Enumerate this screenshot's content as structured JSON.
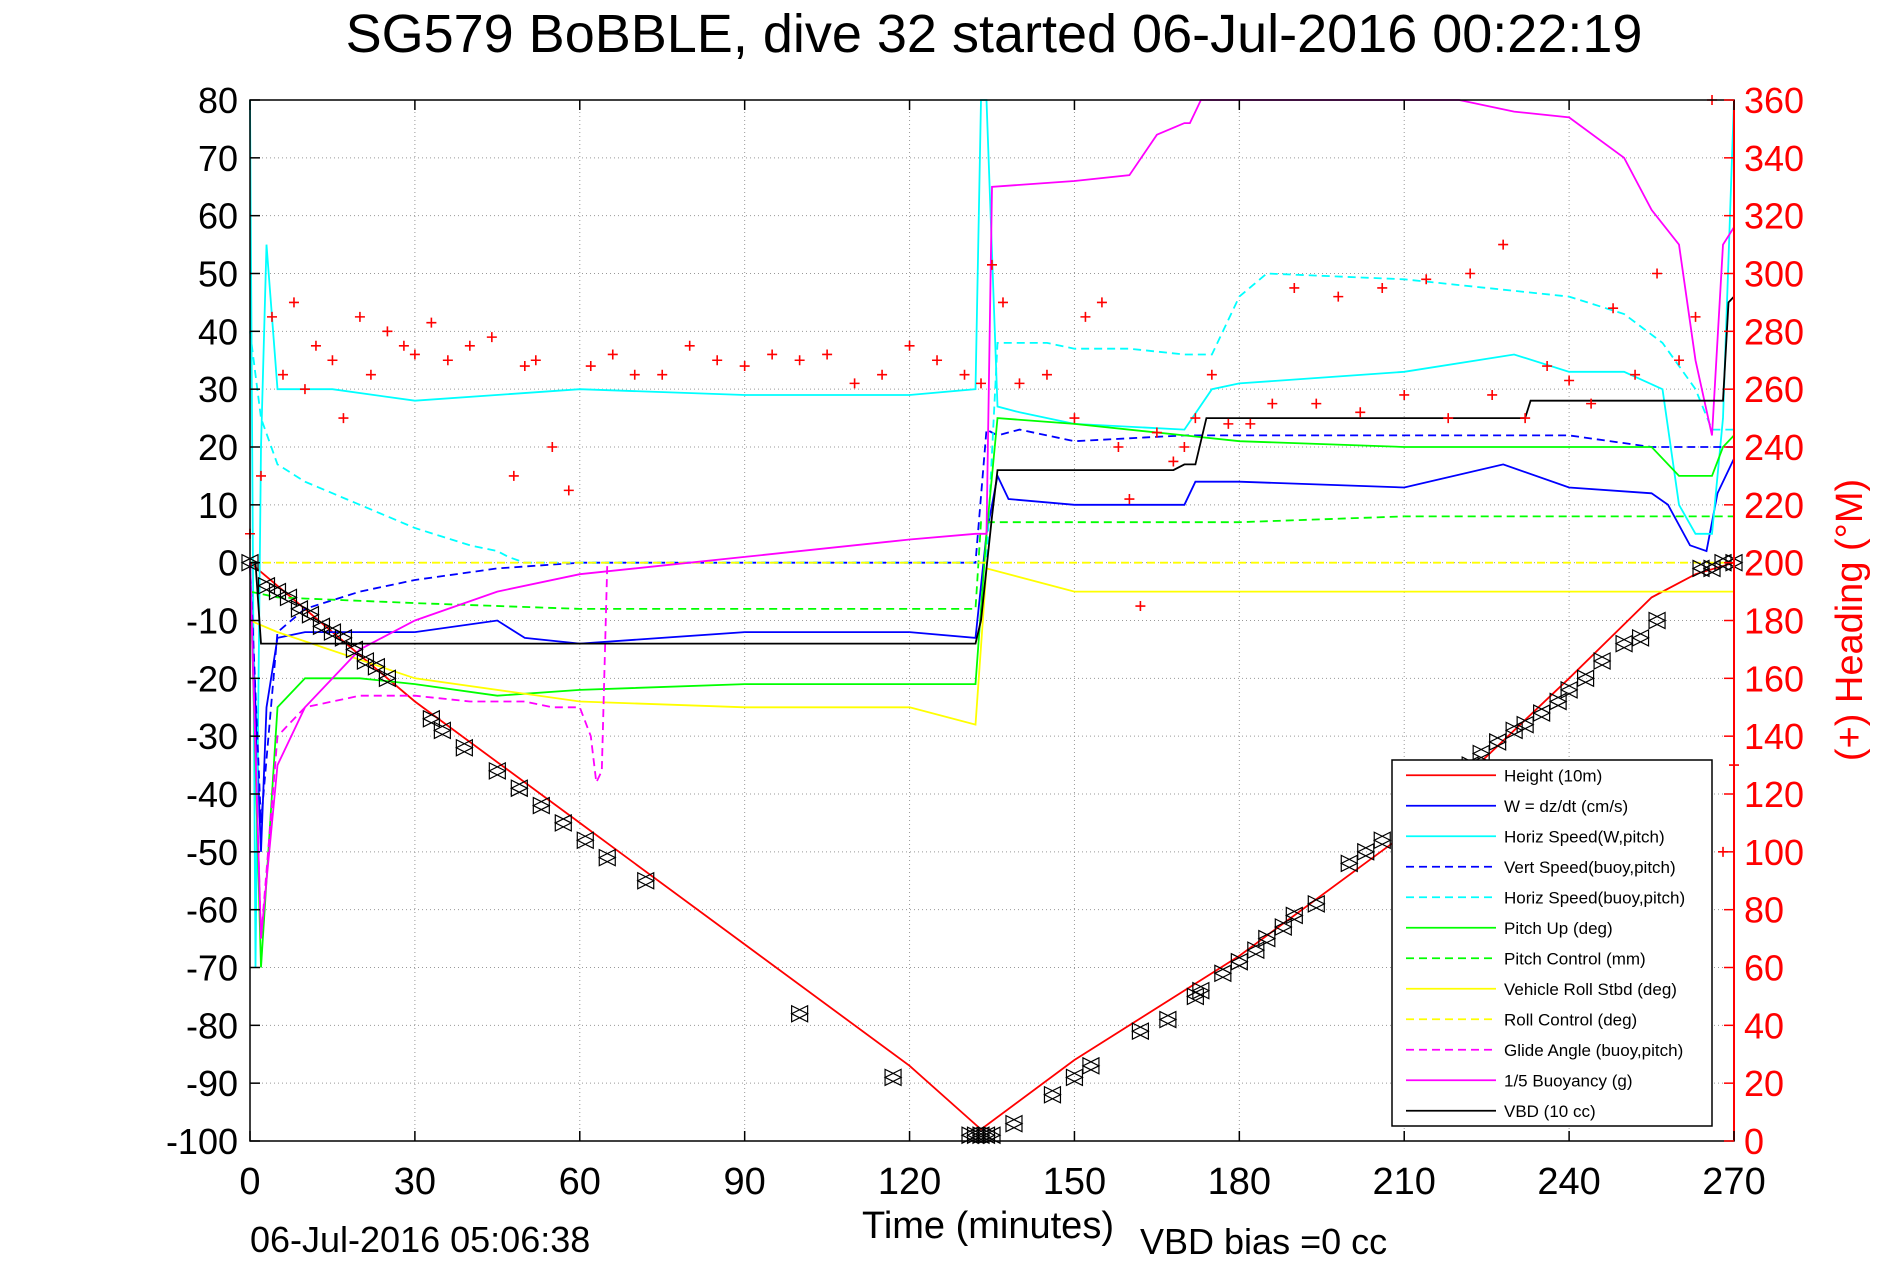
{
  "chart_data": {
    "type": "line",
    "title": "SG579 BoBBLE, dive 32 started 06-Jul-2016 00:22:19",
    "xlabel": "Time (minutes)",
    "ylabel_left": "",
    "ylabel_right": "(+) Heading (°M)",
    "footer_left": "06-Jul-2016 05:06:38",
    "footer_right": "VBD bias =0 cc",
    "xlim": [
      0,
      270
    ],
    "ylim_left": [
      -100,
      80
    ],
    "ylim_right": [
      0,
      360
    ],
    "grid": true,
    "legend_position": "bottom-right",
    "x_ticks": [
      "0",
      "30",
      "60",
      "90",
      "120",
      "150",
      "180",
      "210",
      "240",
      "270"
    ],
    "y_left_ticks": [
      "80",
      "70",
      "60",
      "50",
      "40",
      "30",
      "20",
      "10",
      "0",
      "-10",
      "-20",
      "-30",
      "-40",
      "-50",
      "-60",
      "-70",
      "-80",
      "-90",
      "-100"
    ],
    "y_right_ticks": [
      "360",
      "340",
      "320",
      "300",
      "280",
      "260",
      "240",
      "220",
      "200",
      "180",
      "160",
      "140",
      "120",
      "100",
      "80",
      "60",
      "40",
      "20",
      "0"
    ],
    "series": [
      {
        "name": "Height (10m)",
        "color": "#ff0000",
        "dash": false,
        "x": [
          0,
          30,
          60,
          90,
          120,
          133,
          150,
          180,
          210,
          240,
          255,
          263,
          270
        ],
        "y": [
          0,
          -24,
          -45,
          -66,
          -87,
          -98,
          -86,
          -68,
          -47,
          -20,
          -6,
          -2,
          0
        ]
      },
      {
        "name": "W = dz/dt (cm/s)",
        "color": "#0000ff",
        "dash": false,
        "x": [
          0,
          1,
          2,
          3,
          5,
          10,
          30,
          45,
          50,
          60,
          90,
          120,
          132,
          134,
          136,
          138,
          150,
          170,
          172,
          180,
          210,
          228,
          240,
          255,
          258,
          262,
          265,
          267,
          270
        ],
        "y": [
          0,
          -25,
          -50,
          -25,
          -13,
          -12,
          -12,
          -10,
          -13,
          -14,
          -12,
          -12,
          -13,
          5,
          15,
          11,
          10,
          10,
          14,
          14,
          13,
          17,
          13,
          12,
          10,
          3,
          2,
          12,
          18
        ]
      },
      {
        "name": "Horiz Speed(W,pitch)",
        "color": "#00ffff",
        "dash": false,
        "x": [
          0,
          1,
          2,
          3,
          5,
          15,
          30,
          60,
          90,
          120,
          132,
          133,
          134,
          136,
          140,
          150,
          170,
          175,
          180,
          210,
          230,
          240,
          250,
          257,
          260,
          263,
          266,
          268,
          270
        ],
        "y": [
          80,
          -70,
          20,
          55,
          30,
          30,
          28,
          30,
          29,
          29,
          30,
          80,
          80,
          27,
          26,
          24,
          23,
          30,
          31,
          33,
          36,
          33,
          33,
          30,
          10,
          5,
          5,
          25,
          80
        ]
      },
      {
        "name": "Vert Speed(buoy,pitch)",
        "color": "#0000ff",
        "dash": true,
        "x": [
          0,
          2,
          5,
          10,
          20,
          30,
          45,
          60,
          75,
          90,
          120,
          132,
          134,
          136,
          140,
          150,
          170,
          180,
          210,
          240,
          255,
          260,
          263,
          266,
          270
        ],
        "y": [
          0,
          -45,
          -12,
          -8,
          -5,
          -3,
          -1,
          0,
          0,
          0,
          0,
          0,
          23,
          22,
          23,
          21,
          22,
          22,
          22,
          22,
          20,
          20,
          20,
          20,
          20
        ]
      },
      {
        "name": "Horiz Speed(buoy,pitch)",
        "color": "#00ffff",
        "dash": true,
        "x": [
          0,
          2,
          5,
          10,
          20,
          30,
          40,
          45,
          47,
          50,
          60,
          134,
          136,
          145,
          150,
          160,
          170,
          175,
          180,
          185,
          210,
          240,
          250,
          257,
          260,
          263,
          266,
          268,
          270
        ],
        "y": [
          40,
          25,
          17,
          14,
          10,
          6,
          3,
          2,
          1,
          0,
          0,
          0,
          38,
          38,
          37,
          37,
          36,
          36,
          46,
          50,
          49,
          46,
          43,
          38,
          34,
          30,
          23,
          23,
          23
        ]
      },
      {
        "name": "Pitch Up (deg)",
        "color": "#00ff00",
        "dash": false,
        "x": [
          0,
          2,
          5,
          10,
          20,
          30,
          45,
          60,
          90,
          120,
          132,
          134,
          136,
          150,
          170,
          180,
          210,
          240,
          255,
          260,
          263,
          266,
          268,
          270
        ],
        "y": [
          0,
          -70,
          -25,
          -20,
          -20,
          -21,
          -23,
          -22,
          -21,
          -21,
          -21,
          5,
          25,
          24,
          22,
          21,
          20,
          20,
          20,
          15,
          15,
          15,
          20,
          22
        ]
      },
      {
        "name": "Pitch Control (mm)",
        "color": "#00ff00",
        "dash": true,
        "x": [
          0,
          5,
          30,
          60,
          132,
          133,
          134,
          150,
          170,
          180,
          210,
          240,
          270
        ],
        "y": [
          -5,
          -6,
          -7,
          -8,
          -8,
          7,
          7,
          7,
          7,
          7,
          8,
          8,
          8
        ]
      },
      {
        "name": "Vehicle Roll Stbd (deg)",
        "color": "#ffff00",
        "dash": false,
        "x": [
          0,
          5,
          30,
          60,
          90,
          120,
          132,
          134,
          150,
          180,
          210,
          240,
          270
        ],
        "y": [
          -10,
          -12,
          -20,
          -24,
          -25,
          -25,
          -28,
          -1,
          -5,
          -5,
          -5,
          -5,
          -5
        ]
      },
      {
        "name": "Roll Control (deg)",
        "color": "#ffff00",
        "dash": true,
        "x": [
          0,
          5,
          30,
          60,
          90,
          120,
          132,
          134,
          150,
          180,
          210,
          240,
          270
        ],
        "y": [
          0,
          0,
          0,
          0,
          0,
          0,
          0,
          0,
          0,
          0,
          0,
          0,
          0
        ]
      },
      {
        "name": "Glide Angle (buoy,pitch)",
        "color": "#ff00ff",
        "dash": true,
        "x": [
          0,
          2,
          5,
          10,
          20,
          30,
          40,
          50,
          55,
          60,
          62,
          63,
          64,
          65
        ],
        "y": [
          0,
          -65,
          -30,
          -25,
          -23,
          -23,
          -24,
          -24,
          -25,
          -25,
          -30,
          -38,
          -36,
          0
        ]
      },
      {
        "name": "1/5 Buoyancy (g)",
        "color": "#ff00ff",
        "dash": false,
        "x": [
          0,
          2,
          5,
          10,
          20,
          30,
          45,
          60,
          90,
          120,
          132,
          134,
          135,
          150,
          160,
          165,
          170,
          171,
          172,
          173,
          175,
          180,
          200,
          220,
          230,
          240,
          250,
          255,
          260,
          263,
          266,
          268,
          270
        ],
        "y": [
          0,
          -65,
          -35,
          -25,
          -15,
          -10,
          -5,
          -2,
          1,
          4,
          5,
          5,
          65,
          66,
          67,
          74,
          76,
          76,
          78,
          80,
          80,
          80,
          80,
          80,
          78,
          77,
          70,
          61,
          55,
          35,
          22,
          55,
          58
        ]
      },
      {
        "name": "VBD (10 cc)",
        "color": "#000000",
        "dash": false,
        "x": [
          0,
          1,
          2,
          132,
          133,
          135,
          136,
          150,
          168,
          170,
          172,
          174,
          220,
          225,
          232,
          233,
          268,
          269,
          270
        ],
        "y": [
          0,
          0,
          -14,
          -14,
          -10,
          8,
          16,
          16,
          16,
          17,
          17,
          25,
          25,
          25,
          25,
          28,
          28,
          45,
          46
        ]
      }
    ],
    "heading_series": {
      "name": "Heading (°M)",
      "color": "#ff0000",
      "marker": "+",
      "axis": "right",
      "x": [
        0,
        2,
        4,
        6,
        8,
        10,
        12,
        15,
        17,
        20,
        22,
        25,
        28,
        30,
        33,
        36,
        40,
        44,
        48,
        50,
        52,
        55,
        58,
        62,
        66,
        70,
        75,
        80,
        85,
        90,
        95,
        100,
        105,
        110,
        115,
        120,
        125,
        130,
        133,
        135,
        137,
        140,
        145,
        150,
        152,
        155,
        158,
        160,
        162,
        165,
        168,
        170,
        172,
        175,
        178,
        182,
        186,
        190,
        194,
        198,
        202,
        206,
        210,
        214,
        218,
        222,
        226,
        228,
        232,
        236,
        240,
        244,
        248,
        252,
        256,
        260,
        263,
        266,
        268,
        270
      ],
      "y": [
        210,
        230,
        285,
        265,
        290,
        260,
        275,
        270,
        250,
        285,
        265,
        280,
        275,
        272,
        283,
        270,
        275,
        278,
        230,
        268,
        270,
        240,
        225,
        268,
        272,
        265,
        265,
        275,
        270,
        268,
        272,
        270,
        272,
        262,
        265,
        275,
        270,
        265,
        262,
        303,
        290,
        262,
        265,
        250,
        285,
        290,
        240,
        222,
        185,
        245,
        235,
        240,
        250,
        265,
        248,
        248,
        255,
        295,
        255,
        292,
        252,
        295,
        258,
        298,
        250,
        300,
        258,
        310,
        250,
        268,
        263,
        255,
        288,
        265,
        300,
        270,
        285,
        360,
        100,
        130
      ]
    },
    "depth_markers": {
      "color": "#000000",
      "marker": "triangles",
      "x": [
        0,
        3,
        5,
        7,
        9,
        11,
        13,
        15,
        17,
        19,
        21,
        23,
        25,
        33,
        35,
        39,
        45,
        49,
        53,
        57,
        61,
        65,
        72,
        100,
        117,
        131,
        132,
        133,
        134,
        135,
        139,
        146,
        150,
        153,
        162,
        167,
        172,
        173,
        177,
        180,
        183,
        185,
        188,
        190,
        194,
        200,
        203,
        206,
        210,
        213,
        215,
        218,
        222,
        224,
        227,
        230,
        232,
        235,
        238,
        240,
        243,
        246,
        250,
        253,
        256,
        264,
        266,
        268,
        270
      ],
      "y": [
        0,
        -4,
        -5,
        -6,
        -8,
        -9,
        -11,
        -12,
        -13,
        -15,
        -17,
        -18,
        -20,
        -27,
        -29,
        -32,
        -36,
        -39,
        -42,
        -45,
        -48,
        -51,
        -55,
        -78,
        -89,
        -99,
        -99,
        -99,
        -99,
        -99,
        -97,
        -92,
        -89,
        -87,
        -81,
        -79,
        -75,
        -74,
        -71,
        -69,
        -67,
        -65,
        -63,
        -61,
        -59,
        -52,
        -50,
        -48,
        -46,
        -43,
        -41,
        -39,
        -35,
        -33,
        -31,
        -29,
        -28,
        -26,
        -24,
        -22,
        -20,
        -17,
        -14,
        -13,
        -10,
        -1,
        -1,
        0,
        0
      ]
    }
  }
}
